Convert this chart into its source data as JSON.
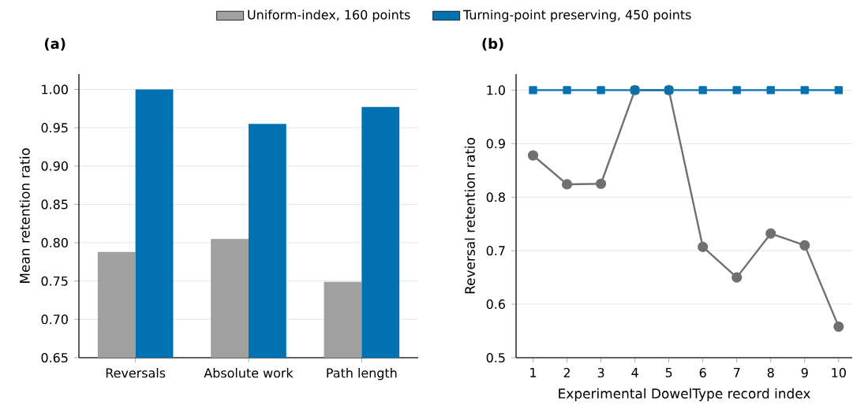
{
  "chart_data": [
    {
      "type": "bar",
      "title": "(a)",
      "ylabel": "Mean retention ratio",
      "categories": [
        "Reversals",
        "Absolute work",
        "Path length"
      ],
      "series": [
        {
          "name": "Uniform-index, 160 points",
          "color": "#a0a0a0",
          "values": [
            0.788,
            0.805,
            0.749
          ]
        },
        {
          "name": "Turning-point preserving, 450 points",
          "color": "#0072b2",
          "values": [
            1.0,
            0.955,
            0.977
          ]
        }
      ],
      "ylim": [
        0.65,
        1.02
      ],
      "yticks": [
        0.65,
        {
          "value": 0.7,
          "label": "0.70"
        },
        0.75,
        {
          "value": 0.8,
          "label": "0.80"
        },
        0.85,
        {
          "value": 0.9,
          "label": "0.90"
        },
        0.95,
        {
          "value": 1.0,
          "label": "1.00"
        }
      ],
      "grid": "y",
      "legend": "top"
    },
    {
      "type": "line",
      "title": "(b)",
      "xlabel": "Experimental DowelType record index",
      "ylabel": "Reversal retention ratio",
      "x": [
        1,
        2,
        3,
        4,
        5,
        6,
        7,
        8,
        9,
        10
      ],
      "series": [
        {
          "color": "#707070",
          "marker": "circle",
          "values": [
            0.878,
            0.824,
            0.825,
            1.0,
            1.0,
            0.707,
            0.65,
            0.732,
            0.71,
            0.558
          ]
        },
        {
          "color": "#0072b2",
          "marker": "square",
          "values": [
            1.0,
            1.0,
            1.0,
            1.0,
            1.0,
            1.0,
            1.0,
            1.0,
            1.0,
            1.0
          ]
        }
      ],
      "xlim": [
        0.5,
        10.4
      ],
      "xticks": [
        1,
        2,
        3,
        4,
        5,
        6,
        7,
        8,
        9,
        10
      ],
      "ylim": [
        0.5,
        1.03
      ],
      "yticks": [
        {
          "value": 0.5,
          "label": "0.5"
        },
        0.6,
        0.7,
        0.8,
        0.9,
        {
          "value": 1.0,
          "label": "1.0"
        }
      ],
      "grid": "y",
      "line_style": "solid"
    }
  ]
}
